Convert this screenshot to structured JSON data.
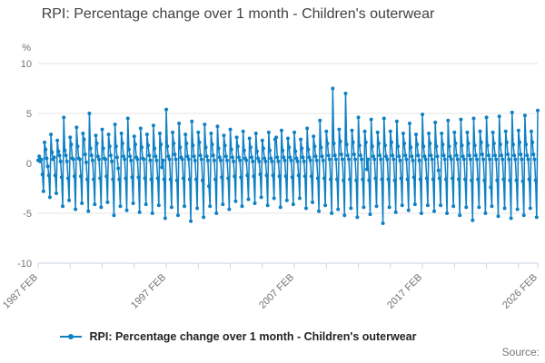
{
  "header": {
    "title": "RPI: Percentage change over 1 month - Children's outerwear"
  },
  "legend": {
    "label": "RPI: Percentage change over 1 month - Children's outerwear"
  },
  "footer": {
    "source_label": "Source:"
  },
  "chart_data": {
    "type": "line",
    "title": "RPI: Percentage change over 1 month - Children's outerwear",
    "series_name": "RPI: Percentage change over 1 month - Children's outerwear",
    "y_unit": "%",
    "ylabel": "%",
    "xlabel": "",
    "frequency": "monthly",
    "x_start": "1987 FEB",
    "x_end": "2026 FEB",
    "ylim": [
      -10,
      10
    ],
    "yticks": [
      10,
      5,
      0,
      -5,
      -10
    ],
    "xtick_labels": [
      {
        "month_index": 0,
        "label": "1987 FEB"
      },
      {
        "month_index": 120,
        "label": "1997 FEB"
      },
      {
        "month_index": 240,
        "label": "2007 FEB"
      },
      {
        "month_index": 360,
        "label": "2017 FEB"
      },
      {
        "month_index": 468,
        "label": "2026 FEB"
      }
    ],
    "minor_tick_interval_months": 30,
    "grid": "horizontal",
    "legend_position": "bottom",
    "line_color": "#0f80c4",
    "grid_color": "#e4e4e4",
    "axis_color": "#c9d3e0",
    "tick_label_color": "#6f7275",
    "marker": "circle",
    "values": [
      0.3,
      0.7,
      0.2,
      0.4,
      -1.1,
      -2.8,
      2.1,
      1.4,
      0.5,
      -0.3,
      -1.2,
      -3.4,
      2.9,
      1.1,
      0.4,
      0.6,
      -1.2,
      -3.0,
      2.3,
      1.2,
      0.8,
      0.2,
      -1.4,
      -4.3,
      4.6,
      1.3,
      0.8,
      0.2,
      -1.5,
      -3.7,
      2.6,
      1.9,
      0.5,
      0.4,
      -1.3,
      -4.6,
      3.6,
      1.7,
      0.5,
      0.4,
      -1.3,
      -4.0,
      3.0,
      2.4,
      0.9,
      0.1,
      -1.6,
      -4.8,
      5.0,
      1.5,
      0.8,
      0.3,
      -1.6,
      -4.1,
      2.8,
      2.0,
      0.7,
      0.4,
      -1.5,
      -4.4,
      3.4,
      1.5,
      0.5,
      0.4,
      -1.3,
      -3.9,
      2.9,
      1.7,
      0.8,
      0.2,
      -1.6,
      -5.2,
      3.9,
      1.7,
      0.6,
      -0.5,
      -1.6,
      -4.3,
      3.0,
      2.0,
      0.7,
      0.4,
      -1.5,
      -4.7,
      4.5,
      1.4,
      0.7,
      0.3,
      -1.4,
      -4.0,
      2.7,
      1.9,
      0.6,
      0.4,
      -1.4,
      -4.9,
      3.5,
      1.6,
      0.5,
      0.4,
      -1.5,
      -4.1,
      2.9,
      1.8,
      0.8,
      0.3,
      -1.6,
      -5.0,
      3.8,
      1.5,
      0.7,
      0.3,
      -1.5,
      -4.2,
      3.0,
      1.9,
      -0.4,
      0.3,
      -1.6,
      -5.5,
      5.4,
      1.7,
      0.7,
      0.4,
      -1.6,
      -4.4,
      3.1,
      2.0,
      0.9,
      0.4,
      -1.7,
      -5.2,
      4.0,
      1.6,
      0.6,
      0.4,
      -1.5,
      -4.3,
      2.9,
      2.0,
      0.7,
      0.4,
      -1.6,
      -5.8,
      4.2,
      1.8,
      0.7,
      0.3,
      -1.6,
      -4.5,
      3.1,
      2.1,
      0.8,
      0.4,
      -1.7,
      -5.4,
      3.9,
      1.6,
      0.7,
      0.3,
      -2.3,
      -4.3,
      3.0,
      1.9,
      0.8,
      0.3,
      -1.6,
      -5.0,
      3.7,
      1.5,
      0.6,
      0.3,
      -1.4,
      -4.1,
      2.8,
      1.8,
      0.7,
      0.3,
      -1.5,
      -4.6,
      3.4,
      1.4,
      0.6,
      0.2,
      -1.3,
      -3.8,
      2.6,
      1.7,
      0.6,
      0.3,
      -1.4,
      -4.3,
      3.2,
      1.3,
      0.5,
      0.3,
      -1.2,
      -3.6,
      2.5,
      1.6,
      0.6,
      0.2,
      -1.3,
      -4.0,
      3.0,
      1.2,
      0.5,
      0.2,
      -1.1,
      -3.4,
      2.3,
      1.5,
      0.5,
      0.2,
      -1.2,
      -4.2,
      3.1,
      1.3,
      0.5,
      0.2,
      -1.2,
      -3.5,
      2.4,
      2.6,
      0.6,
      0.2,
      -1.3,
      -4.4,
      3.3,
      1.3,
      0.6,
      0.3,
      -1.3,
      -3.7,
      2.5,
      1.6,
      0.6,
      0.3,
      -1.4,
      -4.1,
      3.1,
      1.2,
      0.5,
      0.2,
      -1.2,
      -3.5,
      2.4,
      1.5,
      0.6,
      0.2,
      -1.3,
      -4.5,
      3.5,
      1.4,
      0.6,
      0.3,
      -1.3,
      -3.9,
      2.7,
      1.7,
      0.7,
      0.3,
      -1.5,
      -4.8,
      4.3,
      1.6,
      0.7,
      0.3,
      -1.5,
      -4.2,
      3.2,
      2.0,
      0.8,
      0.4,
      -1.6,
      -5.0,
      7.5,
      2.0,
      0.8,
      0.4,
      -1.6,
      -4.6,
      3.4,
      2.2,
      0.9,
      0.4,
      -1.7,
      -5.2,
      7.0,
      1.9,
      0.8,
      0.4,
      -1.6,
      -4.5,
      3.3,
      2.1,
      0.9,
      0.4,
      -1.7,
      -5.4,
      4.6,
      1.8,
      0.8,
      0.4,
      -1.6,
      -4.4,
      3.2,
      2.1,
      -0.6,
      0.4,
      -1.7,
      -5.1,
      4.4,
      1.7,
      0.7,
      0.4,
      -1.5,
      -4.3,
      3.1,
      2.0,
      0.8,
      0.4,
      -1.6,
      -6.0,
      4.5,
      1.8,
      0.7,
      0.4,
      -1.6,
      -4.4,
      3.2,
      2.1,
      0.8,
      0.4,
      -1.7,
      -4.9,
      4.2,
      1.7,
      0.7,
      0.3,
      -1.5,
      -4.2,
      3.0,
      2.0,
      0.8,
      0.4,
      -1.6,
      -4.7,
      4.0,
      1.6,
      0.7,
      0.3,
      -1.4,
      -4.1,
      2.9,
      1.9,
      0.8,
      0.3,
      -1.6,
      -5.0,
      4.9,
      1.7,
      0.7,
      0.4,
      -1.5,
      -4.2,
      3.0,
      2.0,
      0.8,
      0.4,
      -1.6,
      -4.8,
      4.1,
      1.7,
      0.7,
      -0.7,
      -1.5,
      -4.2,
      3.0,
      1.9,
      0.8,
      0.4,
      -1.6,
      -5.0,
      4.3,
      1.7,
      0.7,
      0.4,
      -1.5,
      -4.3,
      3.1,
      2.0,
      0.8,
      0.4,
      -1.6,
      -5.2,
      4.4,
      1.8,
      0.7,
      0.4,
      -1.6,
      -4.4,
      3.1,
      2.0,
      0.8,
      0.4,
      -1.7,
      -5.7,
      4.5,
      1.8,
      0.8,
      0.4,
      -1.6,
      -4.4,
      3.2,
      2.1,
      0.9,
      0.4,
      -1.7,
      -5.0,
      4.6,
      1.8,
      0.8,
      0.4,
      -2.4,
      -4.3,
      3.1,
      2.0,
      0.8,
      0.4,
      -1.7,
      -5.3,
      4.7,
      1.9,
      0.8,
      0.4,
      -1.6,
      -4.5,
      3.2,
      2.1,
      0.9,
      0.4,
      -1.7,
      -5.5,
      5.1,
      1.9,
      0.8,
      0.4,
      -1.7,
      -4.6,
      3.3,
      2.1,
      0.9,
      0.4,
      -1.8,
      -5.2,
      4.8,
      1.9,
      0.8,
      0.4,
      -1.6,
      -4.5,
      3.2,
      2.1,
      0.9,
      0.4,
      -1.7,
      -5.4,
      5.3
    ]
  }
}
